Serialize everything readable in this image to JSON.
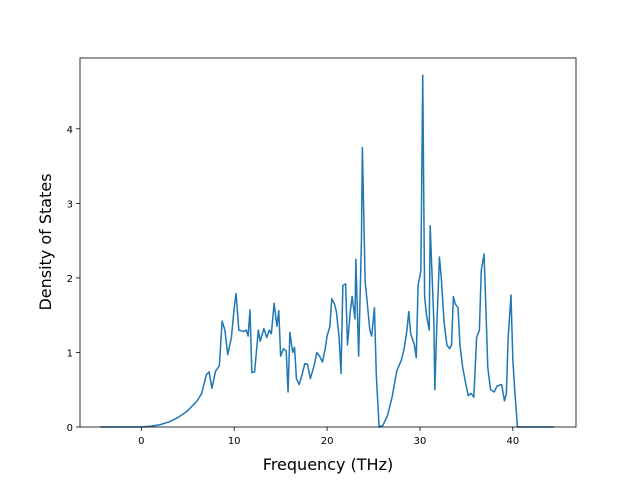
{
  "chart_data": {
    "type": "line",
    "xlabel": "Frequency (THz)",
    "ylabel": "Density of States",
    "xlim": [
      -6.6,
      46.8
    ],
    "ylim": [
      0,
      4.95
    ],
    "xticks": [
      0,
      10,
      20,
      30,
      40
    ],
    "yticks": [
      0,
      1,
      2,
      3,
      4
    ],
    "color": "#1f77b4",
    "x": [
      -4.4,
      0,
      1,
      2,
      3,
      4,
      5,
      6,
      6.5,
      7,
      7.3,
      7.6,
      8,
      8.4,
      8.7,
      9,
      9.3,
      9.7,
      10,
      10.2,
      10.5,
      11,
      11.3,
      11.5,
      11.7,
      11.9,
      12.2,
      12.6,
      12.8,
      13.2,
      13.5,
      13.8,
      14,
      14.3,
      14.6,
      14.8,
      15,
      15.3,
      15.6,
      15.8,
      16,
      16.3,
      16.5,
      16.7,
      17,
      17.3,
      17.6,
      17.9,
      18.2,
      18.6,
      18.9,
      19.2,
      19.5,
      19.8,
      20,
      20.3,
      20.5,
      20.8,
      21,
      21.3,
      21.5,
      21.7,
      22,
      22.2,
      22.5,
      22.7,
      23,
      23.1,
      23.4,
      23.7,
      23.8,
      24.1,
      24.3,
      24.6,
      24.8,
      25.1,
      25.3,
      25.6,
      26,
      26.5,
      27,
      27.5,
      28,
      28.3,
      28.6,
      28.8,
      29,
      29.4,
      29.6,
      29.8,
      30.1,
      30.3,
      30.5,
      30.7,
      31,
      31.1,
      31.5,
      31.6,
      31.8,
      32.1,
      32.3,
      32.6,
      32.9,
      33.2,
      33.4,
      33.6,
      33.8,
      34.1,
      34.3,
      34.6,
      34.9,
      35.2,
      35.5,
      35.8,
      36.1,
      36.4,
      36.6,
      36.9,
      37.1,
      37.3,
      37.6,
      38,
      38.3,
      38.8,
      39.1,
      39.3,
      39.5,
      39.8,
      40,
      40.2,
      40.5,
      41,
      44.4
    ],
    "values": [
      0,
      0,
      0.01,
      0.03,
      0.07,
      0.13,
      0.22,
      0.35,
      0.45,
      0.7,
      0.74,
      0.52,
      0.75,
      0.82,
      1.42,
      1.3,
      0.97,
      1.2,
      1.6,
      1.79,
      1.3,
      1.28,
      1.3,
      1.22,
      1.57,
      0.73,
      0.74,
      1.3,
      1.15,
      1.32,
      1.2,
      1.3,
      1.25,
      1.66,
      1.35,
      1.56,
      0.95,
      1.05,
      1.02,
      0.47,
      1.27,
      1.0,
      1.07,
      0.65,
      0.57,
      0.7,
      0.85,
      0.84,
      0.65,
      0.82,
      1.0,
      0.95,
      0.87,
      1.05,
      1.22,
      1.35,
      1.72,
      1.65,
      1.55,
      1.2,
      0.72,
      1.9,
      1.92,
      1.1,
      1.55,
      1.75,
      1.45,
      2.25,
      0.95,
      2.5,
      3.75,
      1.95,
      1.7,
      1.3,
      1.22,
      1.6,
      0.7,
      0,
      0.02,
      0.15,
      0.4,
      0.75,
      0.9,
      1.05,
      1.3,
      1.55,
      1.25,
      1.1,
      0.93,
      1.9,
      2.1,
      4.72,
      1.75,
      1.5,
      1.3,
      2.7,
      1.4,
      0.5,
      1.3,
      2.28,
      2.0,
      1.4,
      1.1,
      1.05,
      1.1,
      1.75,
      1.65,
      1.6,
      1.1,
      0.8,
      0.6,
      0.42,
      0.45,
      0.4,
      1.2,
      1.3,
      2.1,
      2.32,
      1.6,
      0.8,
      0.5,
      0.47,
      0.55,
      0.57,
      0.35,
      0.45,
      1.2,
      1.77,
      0.9,
      0.5,
      0,
      0,
      0
    ]
  }
}
